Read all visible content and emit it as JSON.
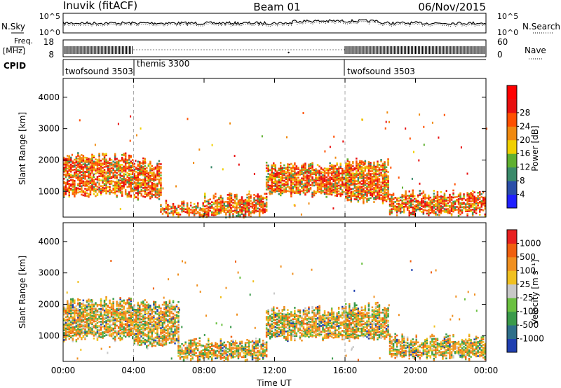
{
  "header": {
    "station": "Inuvik (fitACF)",
    "beam": "Beam 01",
    "date": "06/Nov/2015"
  },
  "strip": {
    "nsky_label": "N.Sky",
    "nsky_ticks": [
      "10^5",
      "10^0"
    ],
    "nsearch_label": "N.Search",
    "nsearch_ticks": [
      "10^5",
      "10^0"
    ],
    "freq_label_1": "Freq.",
    "freq_label_2": "[MHz]",
    "freq_ticks": [
      "18",
      "8"
    ],
    "nave_label": "Nave",
    "nave_ticks": [
      "60",
      "0"
    ],
    "cpid_label": "CPID",
    "cpid_segments": [
      {
        "name": "twofsound 3503",
        "start_h": 0,
        "end_h": 4
      },
      {
        "name": "themis 3300",
        "start_h": 4,
        "end_h": 16
      },
      {
        "name": "twofsound 3503",
        "start_h": 16,
        "end_h": 24
      }
    ]
  },
  "chart_data": [
    {
      "type": "heatmap",
      "panel": "power",
      "xlabel": "",
      "ylabel": "Slant Range [km]",
      "x_range_hours": [
        0,
        24
      ],
      "ylim": [
        180,
        4600
      ],
      "y_ticks": [
        1000,
        2000,
        3000,
        4000
      ],
      "colorbar_label": "Power [dB]",
      "colorbar_ticks": [
        "4",
        "8",
        "12",
        "16",
        "20",
        "24",
        "28"
      ],
      "colorbar_colors": [
        "#2020ff",
        "#2a4ea8",
        "#3a8a6a",
        "#5fb030",
        "#f0d000",
        "#f08a10",
        "#ff5000",
        "#e81010",
        "#ff0000"
      ],
      "description_bands": [
        {
          "t0": 0.0,
          "t1": 4.0,
          "r0": 900,
          "r1": 2100
        },
        {
          "t0": 4.0,
          "t1": 5.5,
          "r0": 800,
          "r1": 1900
        },
        {
          "t0": 5.5,
          "t1": 8.0,
          "r0": 250,
          "r1": 600
        },
        {
          "t0": 8.0,
          "t1": 11.5,
          "r0": 250,
          "r1": 800
        },
        {
          "t0": 11.5,
          "t1": 16.0,
          "r0": 900,
          "r1": 1800
        },
        {
          "t0": 16.0,
          "t1": 18.5,
          "r0": 700,
          "r1": 1900
        },
        {
          "t0": 18.5,
          "t1": 24.0,
          "r0": 300,
          "r1": 900
        }
      ]
    },
    {
      "type": "heatmap",
      "panel": "velocity",
      "xlabel": "Time UT",
      "ylabel": "Slant Range [km]",
      "x_range_hours": [
        0,
        24
      ],
      "x_ticks": [
        "00:00",
        "04:00",
        "08:00",
        "12:00",
        "16:00",
        "20:00",
        "00:00"
      ],
      "ylim": [
        180,
        4600
      ],
      "y_ticks": [
        1000,
        2000,
        3000,
        4000
      ],
      "colorbar_label": "Velocity [m s⁻¹]",
      "colorbar_ticks": [
        "1000",
        "500",
        "100",
        "25",
        "-25",
        "-100",
        "-500",
        "-1000"
      ],
      "colorbar_colors": [
        "#1f3fb0",
        "#2e6f8a",
        "#3a9a4a",
        "#6ac040",
        "#c8c8c8",
        "#f0c020",
        "#f09020",
        "#f06010",
        "#e82020"
      ],
      "description_bands": [
        {
          "t0": 0.0,
          "t1": 4.0,
          "r0": 900,
          "r1": 2100
        },
        {
          "t0": 4.0,
          "t1": 6.5,
          "r0": 700,
          "r1": 2000
        },
        {
          "t0": 6.5,
          "t1": 11.5,
          "r0": 250,
          "r1": 800
        },
        {
          "t0": 11.5,
          "t1": 16.0,
          "r0": 900,
          "r1": 1800
        },
        {
          "t0": 16.0,
          "t1": 18.5,
          "r0": 900,
          "r1": 1900
        },
        {
          "t0": 18.5,
          "t1": 24.0,
          "r0": 300,
          "r1": 900
        }
      ]
    }
  ]
}
